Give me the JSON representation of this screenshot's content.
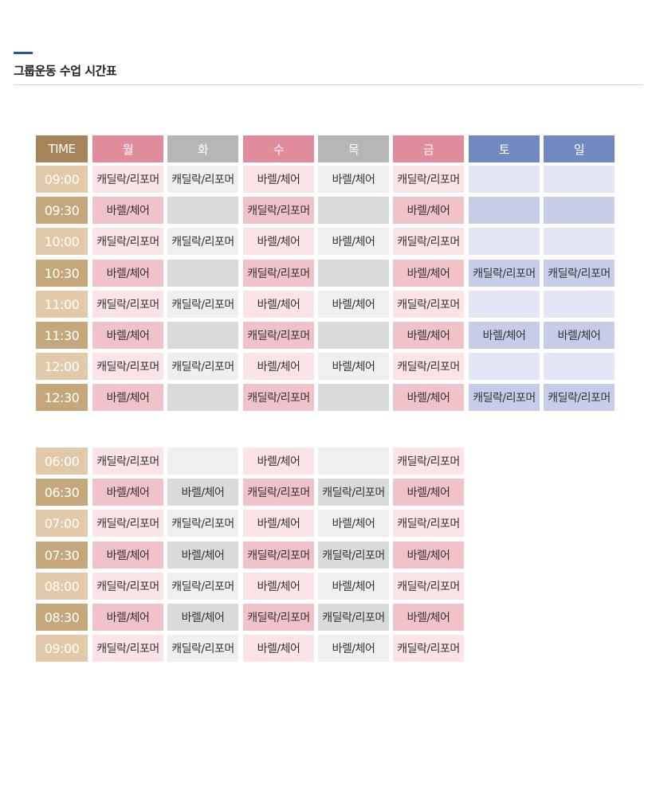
{
  "page": {
    "title": "그룹운동 수업 시간표"
  },
  "colors": {
    "title_accent": "#2a56a5",
    "time_header": "#a8845a",
    "time_light": "#e0caa9",
    "time_dark": "#c5a77c",
    "header": {
      "weekday_pink": "#df8d9c",
      "weekday_gray": "#b6b6b6",
      "weekend_blue": "#7089c0"
    },
    "cell": {
      "pink_light": "#fbe4e8",
      "pink_dark": "#f0c2ca",
      "gray_light": "#efefef",
      "gray_dark": "#dadada",
      "blue_light": "#e4e6f5",
      "blue_dark": "#c7cce8"
    }
  },
  "header": {
    "time_label": "TIME",
    "days": [
      {
        "label": "월",
        "theme": "weekday_pink"
      },
      {
        "label": "화",
        "theme": "weekday_gray"
      },
      {
        "label": "수",
        "theme": "weekday_pink"
      },
      {
        "label": "목",
        "theme": "weekday_gray"
      },
      {
        "label": "금",
        "theme": "weekday_pink"
      },
      {
        "label": "토",
        "theme": "weekend_blue"
      },
      {
        "label": "일",
        "theme": "weekend_blue"
      }
    ]
  },
  "morning": [
    {
      "time": "09:00",
      "cells": [
        "캐딜락/리포머",
        "캐딜락/리포머",
        "바렐/체어",
        "바렐/체어",
        "캐딜락/리포머",
        "",
        ""
      ]
    },
    {
      "time": "09:30",
      "cells": [
        "바렐/체어",
        "",
        "캐딜락/리포머",
        "",
        "바렐/체어",
        "",
        ""
      ]
    },
    {
      "time": "10:00",
      "cells": [
        "캐딜락/리포머",
        "캐딜락/리포머",
        "바렐/체어",
        "바렐/체어",
        "캐딜락/리포머",
        "",
        ""
      ]
    },
    {
      "time": "10:30",
      "cells": [
        "바렐/체어",
        "",
        "캐딜락/리포머",
        "",
        "바렐/체어",
        "캐딜락/리포머",
        "캐딜락/리포머"
      ]
    },
    {
      "time": "11:00",
      "cells": [
        "캐딜락/리포머",
        "캐딜락/리포머",
        "바렐/체어",
        "바렐/체어",
        "캐딜락/리포머",
        "",
        ""
      ]
    },
    {
      "time": "11:30",
      "cells": [
        "바렐/체어",
        "",
        "캐딜락/리포머",
        "",
        "바렐/체어",
        "바렐/체어",
        "바렐/체어"
      ]
    },
    {
      "time": "12:00",
      "cells": [
        "캐딜락/리포머",
        "캐딜락/리포머",
        "바렐/체어",
        "바렐/체어",
        "캐딜락/리포머",
        "",
        ""
      ]
    },
    {
      "time": "12:30",
      "cells": [
        "바렐/체어",
        "",
        "캐딜락/리포머",
        "",
        "바렐/체어",
        "캐딜락/리포머",
        "캐딜락/리포머"
      ]
    }
  ],
  "evening": [
    {
      "time": "06:00",
      "cells": [
        "캐딜락/리포머",
        "",
        "바렐/체어",
        "",
        "캐딜락/리포머"
      ]
    },
    {
      "time": "06:30",
      "cells": [
        "바렐/체어",
        "바렐/체어",
        "캐딜락/리포머",
        "캐딜락/리포머",
        "바렐/체어"
      ]
    },
    {
      "time": "07:00",
      "cells": [
        "캐딜락/리포머",
        "캐딜락/리포머",
        "바렐/체어",
        "바렐/체어",
        "캐딜락/리포머"
      ]
    },
    {
      "time": "07:30",
      "cells": [
        "바렐/체어",
        "바렐/체어",
        "캐딜락/리포머",
        "캐딜락/리포머",
        "바렐/체어"
      ]
    },
    {
      "time": "08:00",
      "cells": [
        "캐딜락/리포머",
        "캐딜락/리포머",
        "바렐/체어",
        "바렐/체어",
        "캐딜락/리포머"
      ]
    },
    {
      "time": "08:30",
      "cells": [
        "바렐/체어",
        "바렐/체어",
        "캐딜락/리포머",
        "캐딜락/리포머",
        "바렐/체어"
      ]
    },
    {
      "time": "09:00",
      "cells": [
        "캐딜락/리포머",
        "캐딜락/리포머",
        "바렐/체어",
        "바렐/체어",
        "캐딜락/리포머"
      ]
    }
  ]
}
